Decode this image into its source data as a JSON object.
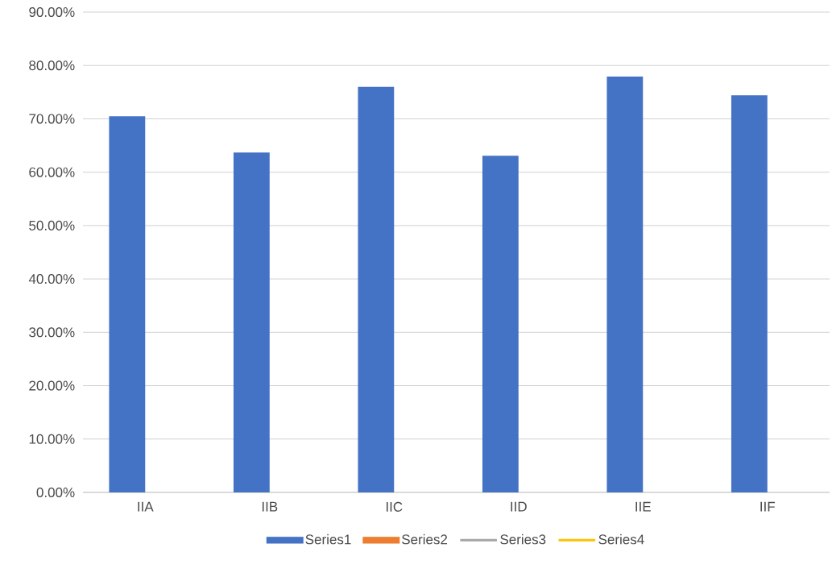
{
  "chart_data": {
    "type": "bar",
    "categories": [
      "IIA",
      "IIB",
      "IIC",
      "IID",
      "IIE",
      "IIF"
    ],
    "series": [
      {
        "name": "Series1",
        "color": "#4472c4",
        "values": [
          70.5,
          63.7,
          76.0,
          63.1,
          77.9,
          74.4
        ]
      },
      {
        "name": "Series2",
        "color": "#ed7d31",
        "values": [
          null,
          null,
          null,
          null,
          null,
          null
        ]
      },
      {
        "name": "Series3",
        "type": "line",
        "color": "#a5a5a5",
        "values": [
          null,
          null,
          null,
          null,
          null,
          null
        ]
      },
      {
        "name": "Series4",
        "type": "line",
        "color": "#ffc000",
        "values": [
          null,
          null,
          null,
          null,
          null,
          null
        ]
      }
    ],
    "ylim": [
      0,
      90
    ],
    "yticks": [
      {
        "value": 0,
        "label": "0.00%"
      },
      {
        "value": 10,
        "label": "10.00%"
      },
      {
        "value": 20,
        "label": "20.00%"
      },
      {
        "value": 30,
        "label": "30.00%"
      },
      {
        "value": 40,
        "label": "40.00%"
      },
      {
        "value": 50,
        "label": "50.00%"
      },
      {
        "value": 60,
        "label": "60.00%"
      },
      {
        "value": 70,
        "label": "70.00%"
      },
      {
        "value": 80,
        "label": "80.00%"
      },
      {
        "value": 90,
        "label": "90.00%"
      }
    ],
    "grid": "y",
    "legend": "bottom"
  }
}
